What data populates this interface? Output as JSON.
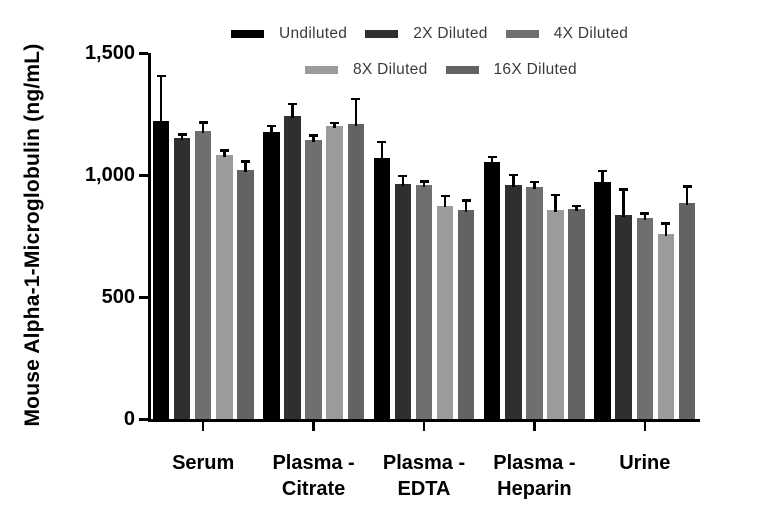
{
  "chart_data": {
    "type": "bar",
    "title": "",
    "ylabel": "Mouse Alpha-1-Microglobulin (ng/mL)",
    "xlabel": "",
    "ylim": [
      0,
      1500
    ],
    "yticks": [
      0,
      500,
      1000,
      1500
    ],
    "ytick_labels": [
      "0",
      "500",
      "1,000",
      "1,500"
    ],
    "categories": [
      "Serum",
      "Plasma -\nCitrate",
      "Plasma -\nEDTA",
      "Plasma -\nHeparin",
      "Urine"
    ],
    "grid": false,
    "legend_position": "top",
    "legend_rows": [
      [
        0,
        1,
        2
      ],
      [
        3,
        4
      ]
    ],
    "error_bars": "upper, black, capped",
    "series": [
      {
        "name": "Undiluted",
        "color": "#000000",
        "values": [
          1220,
          1175,
          1070,
          1055,
          970
        ],
        "errors": [
          185,
          25,
          65,
          17,
          45
        ]
      },
      {
        "name": "2X Diluted",
        "color": "#2f2f2f",
        "values": [
          1150,
          1240,
          965,
          960,
          835
        ],
        "errors": [
          15,
          50,
          30,
          40,
          105
        ]
      },
      {
        "name": "4X Diluted",
        "color": "#6f6f6f",
        "values": [
          1180,
          1145,
          960,
          950,
          825
        ],
        "errors": [
          35,
          15,
          12,
          20,
          16
        ]
      },
      {
        "name": "8X Diluted",
        "color": "#9b9b9b",
        "values": [
          1080,
          1200,
          875,
          855,
          760
        ],
        "errors": [
          20,
          12,
          37,
          62,
          41
        ]
      },
      {
        "name": "16X Diluted",
        "color": "#636363",
        "values": [
          1020,
          1210,
          855,
          860,
          885
        ],
        "errors": [
          35,
          100,
          40,
          12,
          66
        ]
      }
    ]
  }
}
